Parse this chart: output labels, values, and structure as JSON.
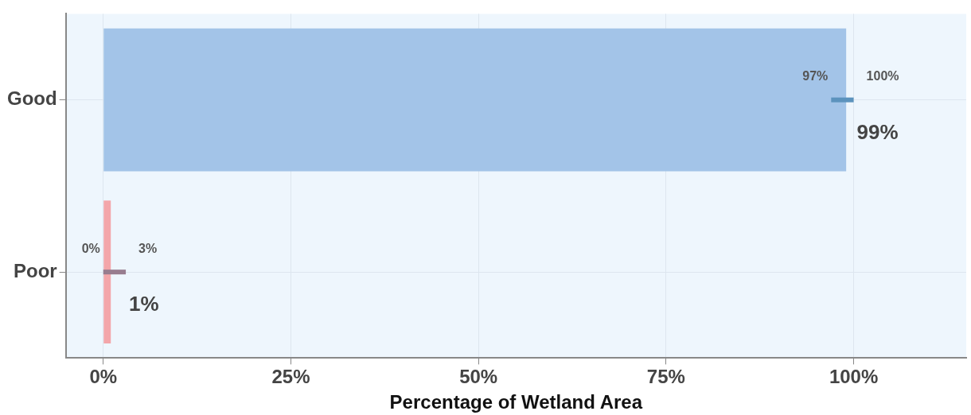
{
  "chart_data": {
    "type": "bar",
    "orientation": "horizontal",
    "xlabel": "Percentage of Wetland Area",
    "categories": [
      "Good",
      "Poor"
    ],
    "values": [
      99,
      1
    ],
    "colors": [
      "#a3c4e8",
      "#f3a6aa"
    ],
    "errors": [
      [
        97,
        100
      ],
      [
        0,
        3
      ]
    ],
    "value_labels": [
      "99%",
      "1%"
    ],
    "annotations": [
      {
        "text": "97%",
        "x": 97,
        "y": "Good"
      },
      {
        "text": "100%",
        "x": 100,
        "y": "Good"
      },
      {
        "text": "0%",
        "x": 0,
        "y": "Poor"
      },
      {
        "text": "3%",
        "x": 3,
        "y": "Poor"
      }
    ],
    "xlim": [
      -5,
      115
    ],
    "xticks": [
      {
        "value": 0,
        "label": "0%"
      },
      {
        "value": 25,
        "label": "25%"
      },
      {
        "value": 50,
        "label": "50%"
      },
      {
        "value": 75,
        "label": "75%"
      },
      {
        "value": 100,
        "label": "100%"
      }
    ],
    "grid": true
  }
}
